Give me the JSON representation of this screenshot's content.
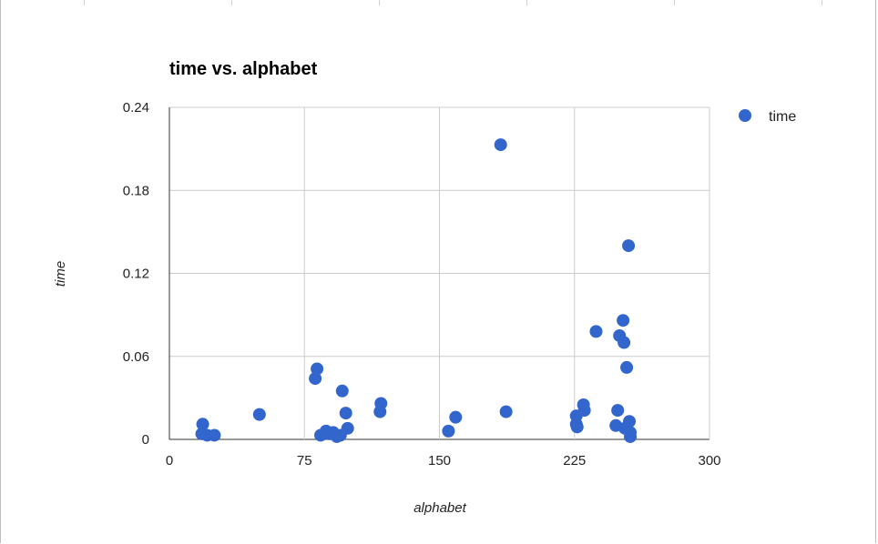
{
  "chart_data": {
    "type": "scatter",
    "title": "time vs. alphabet",
    "xlabel": "alphabet",
    "ylabel": "time",
    "xlim": [
      0,
      300
    ],
    "ylim": [
      0,
      0.24
    ],
    "xticks": [
      "0",
      "75",
      "150",
      "225",
      "300"
    ],
    "yticks": [
      "0",
      "0.06",
      "0.12",
      "0.18",
      "0.24"
    ],
    "grid": true,
    "legend": "top-right",
    "color": "#3366cc",
    "series": [
      {
        "name": "time",
        "points": [
          [
            18,
            0.004
          ],
          [
            18.5,
            0.011
          ],
          [
            21,
            0.003
          ],
          [
            25,
            0.003
          ],
          [
            50,
            0.018
          ],
          [
            81,
            0.044
          ],
          [
            82,
            0.051
          ],
          [
            84,
            0.003
          ],
          [
            87,
            0.006
          ],
          [
            89,
            0.004
          ],
          [
            91,
            0.005
          ],
          [
            93,
            0.002
          ],
          [
            95,
            0.003
          ],
          [
            96,
            0.035
          ],
          [
            98,
            0.019
          ],
          [
            99,
            0.008
          ],
          [
            117,
            0.02
          ],
          [
            117.5,
            0.026
          ],
          [
            155,
            0.006
          ],
          [
            159,
            0.016
          ],
          [
            184,
            0.213
          ],
          [
            187,
            0.02
          ],
          [
            226,
            0.017
          ],
          [
            226,
            0.011
          ],
          [
            226.5,
            0.009
          ],
          [
            230,
            0.025
          ],
          [
            230.5,
            0.021
          ],
          [
            237,
            0.078
          ],
          [
            248,
            0.01
          ],
          [
            249,
            0.021
          ],
          [
            250,
            0.075
          ],
          [
            252,
            0.086
          ],
          [
            252.5,
            0.07
          ],
          [
            253,
            0.008
          ],
          [
            254,
            0.052
          ],
          [
            255,
            0.14
          ],
          [
            255.5,
            0.013
          ],
          [
            256,
            0.005
          ],
          [
            256,
            0.002
          ]
        ]
      }
    ]
  }
}
